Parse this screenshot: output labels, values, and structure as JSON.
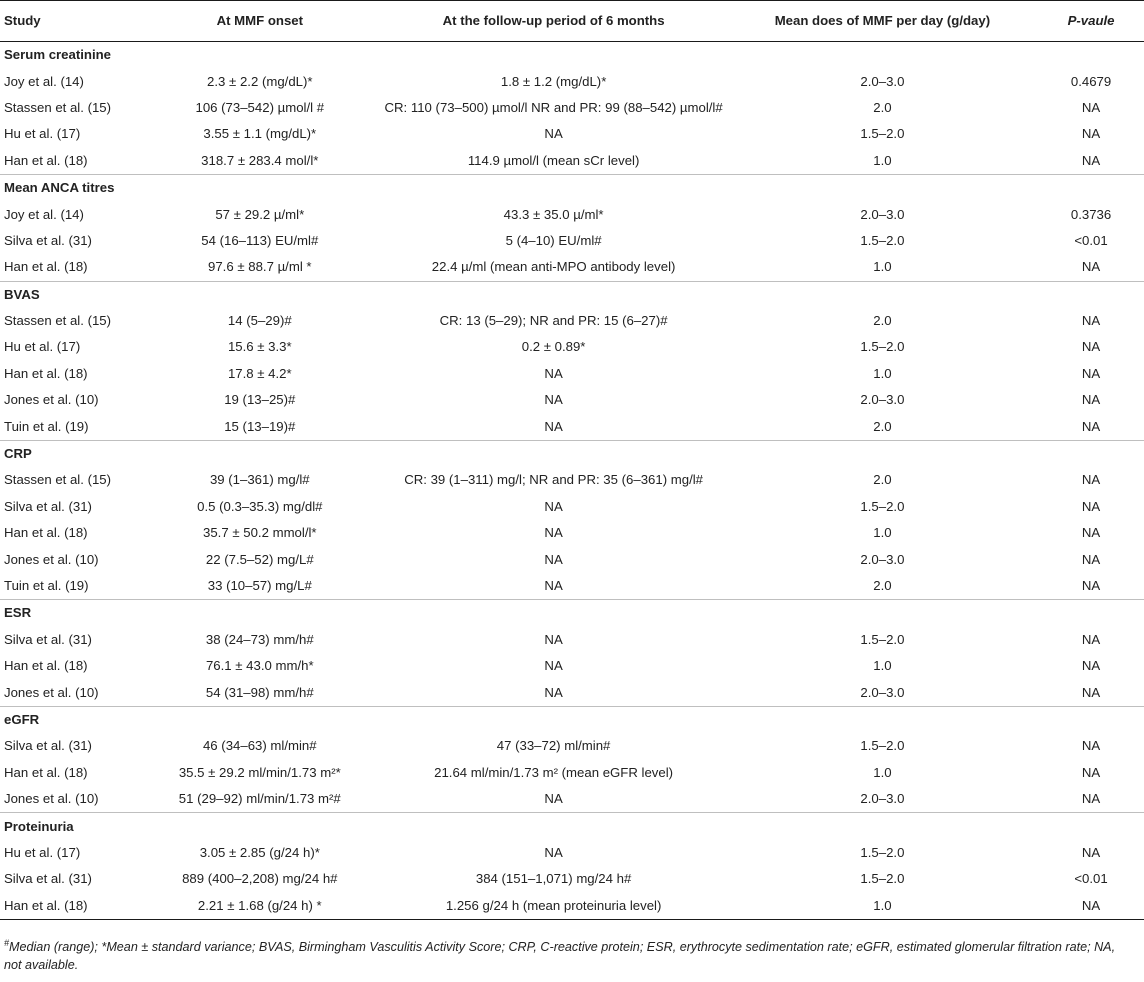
{
  "table": {
    "headers": {
      "study": "Study",
      "onset": "At MMF onset",
      "followup": "At the follow-up period of 6 months",
      "dose": "Mean does of MMF per day (g/day)",
      "p": "P-vaule"
    },
    "sections": [
      {
        "title": "Serum creatinine",
        "rows": [
          {
            "study": "Joy et al. (14)",
            "onset": "2.3 ± 2.2 (mg/dL)*",
            "followup": "1.8 ± 1.2 (mg/dL)*",
            "dose": "2.0–3.0",
            "p": "0.4679"
          },
          {
            "study": "Stassen et al. (15)",
            "onset": "106 (73–542) µmol/l #",
            "followup": "CR: 110 (73–500) µmol/l NR and PR: 99 (88–542) µmol/l#",
            "dose": "2.0",
            "p": "NA"
          },
          {
            "study": "Hu et al. (17)",
            "onset": "3.55 ± 1.1 (mg/dL)*",
            "followup": "NA",
            "dose": "1.5–2.0",
            "p": "NA"
          },
          {
            "study": "Han et al. (18)",
            "onset": "318.7 ± 283.4 mol/l*",
            "followup": "114.9 µmol/l (mean sCr level)",
            "dose": "1.0",
            "p": "NA"
          }
        ]
      },
      {
        "title": "Mean ANCA titres",
        "rows": [
          {
            "study": "Joy et al. (14)",
            "onset": "57 ± 29.2 µ/ml*",
            "followup": "43.3 ± 35.0 µ/ml*",
            "dose": "2.0–3.0",
            "p": "0.3736"
          },
          {
            "study": "Silva et al. (31)",
            "onset": "54 (16–113) EU/ml#",
            "followup": "5 (4–10) EU/ml#",
            "dose": "1.5–2.0",
            "p": "<0.01"
          },
          {
            "study": "Han et al. (18)",
            "onset": "97.6 ± 88.7 µ/ml *",
            "followup": "22.4 µ/ml (mean anti-MPO antibody level)",
            "dose": "1.0",
            "p": "NA"
          }
        ]
      },
      {
        "title": "BVAS",
        "rows": [
          {
            "study": "Stassen et al. (15)",
            "onset": "14 (5–29)#",
            "followup": "CR: 13 (5–29); NR and PR: 15 (6–27)#",
            "dose": "2.0",
            "p": "NA"
          },
          {
            "study": "Hu et al. (17)",
            "onset": "15.6 ± 3.3*",
            "followup": "0.2 ± 0.89*",
            "dose": "1.5–2.0",
            "p": "NA"
          },
          {
            "study": "Han et al. (18)",
            "onset": "17.8 ± 4.2*",
            "followup": "NA",
            "dose": "1.0",
            "p": "NA"
          },
          {
            "study": "Jones et al. (10)",
            "onset": "19 (13–25)#",
            "followup": "NA",
            "dose": "2.0–3.0",
            "p": "NA"
          },
          {
            "study": "Tuin et al. (19)",
            "onset": "15 (13–19)#",
            "followup": "NA",
            "dose": "2.0",
            "p": "NA"
          }
        ]
      },
      {
        "title": "CRP",
        "rows": [
          {
            "study": "Stassen et al. (15)",
            "onset": "39 (1–361) mg/l#",
            "followup": "CR: 39 (1–311) mg/l; NR and PR: 35 (6–361) mg/l#",
            "dose": "2.0",
            "p": "NA"
          },
          {
            "study": "Silva et al. (31)",
            "onset": "0.5 (0.3–35.3) mg/dl#",
            "followup": "NA",
            "dose": "1.5–2.0",
            "p": "NA"
          },
          {
            "study": "Han et al. (18)",
            "onset": "35.7 ± 50.2 mmol/l*",
            "followup": "NA",
            "dose": "1.0",
            "p": "NA"
          },
          {
            "study": "Jones et al. (10)",
            "onset": "22 (7.5–52) mg/L#",
            "followup": "NA",
            "dose": "2.0–3.0",
            "p": "NA"
          },
          {
            "study": "Tuin et al. (19)",
            "onset": "33 (10–57) mg/L#",
            "followup": "NA",
            "dose": "2.0",
            "p": "NA"
          }
        ]
      },
      {
        "title": "ESR",
        "rows": [
          {
            "study": "Silva et al. (31)",
            "onset": "38 (24–73) mm/h#",
            "followup": "NA",
            "dose": "1.5–2.0",
            "p": "NA"
          },
          {
            "study": "Han et al. (18)",
            "onset": "76.1 ± 43.0 mm/h*",
            "followup": "NA",
            "dose": "1.0",
            "p": "NA"
          },
          {
            "study": "Jones et al. (10)",
            "onset": "54 (31–98) mm/h#",
            "followup": "NA",
            "dose": "2.0–3.0",
            "p": "NA"
          }
        ]
      },
      {
        "title": "eGFR",
        "rows": [
          {
            "study": "Silva et al. (31)",
            "onset": "46 (34–63) ml/min#",
            "followup": "47 (33–72) ml/min#",
            "dose": "1.5–2.0",
            "p": "NA"
          },
          {
            "study": "Han et al. (18)",
            "onset": "35.5 ± 29.2 ml/min/1.73 m²*",
            "followup": "21.64 ml/min/1.73 m² (mean eGFR level)",
            "dose": "1.0",
            "p": "NA"
          },
          {
            "study": "Jones et al. (10)",
            "onset": "51 (29–92) ml/min/1.73 m²#",
            "followup": "NA",
            "dose": "2.0–3.0",
            "p": "NA"
          }
        ]
      },
      {
        "title": "Proteinuria",
        "rows": [
          {
            "study": "Hu et al. (17)",
            "onset": "3.05 ± 2.85 (g/24 h)*",
            "followup": "NA",
            "dose": "1.5–2.0",
            "p": "NA"
          },
          {
            "study": "Silva et al. (31)",
            "onset": "889 (400–2,208) mg/24 h#",
            "followup": "384 (151–1,071) mg/24 h#",
            "dose": "1.5–2.0",
            "p": "<0.01"
          },
          {
            "study": "Han et al. (18)",
            "onset": "2.21 ± 1.68 (g/24 h) *",
            "followup": "1.256 g/24 h (mean proteinuria level)",
            "dose": "1.0",
            "p": "NA"
          }
        ]
      }
    ]
  },
  "footnote": {
    "mark": "#",
    "text": "Median (range); *Mean ± standard variance; BVAS, Birmingham Vasculitis Activity Score; CRP, C-reactive protein; ESR, erythrocyte sedimentation rate; eGFR, estimated glomerular filtration rate; NA, not available."
  }
}
